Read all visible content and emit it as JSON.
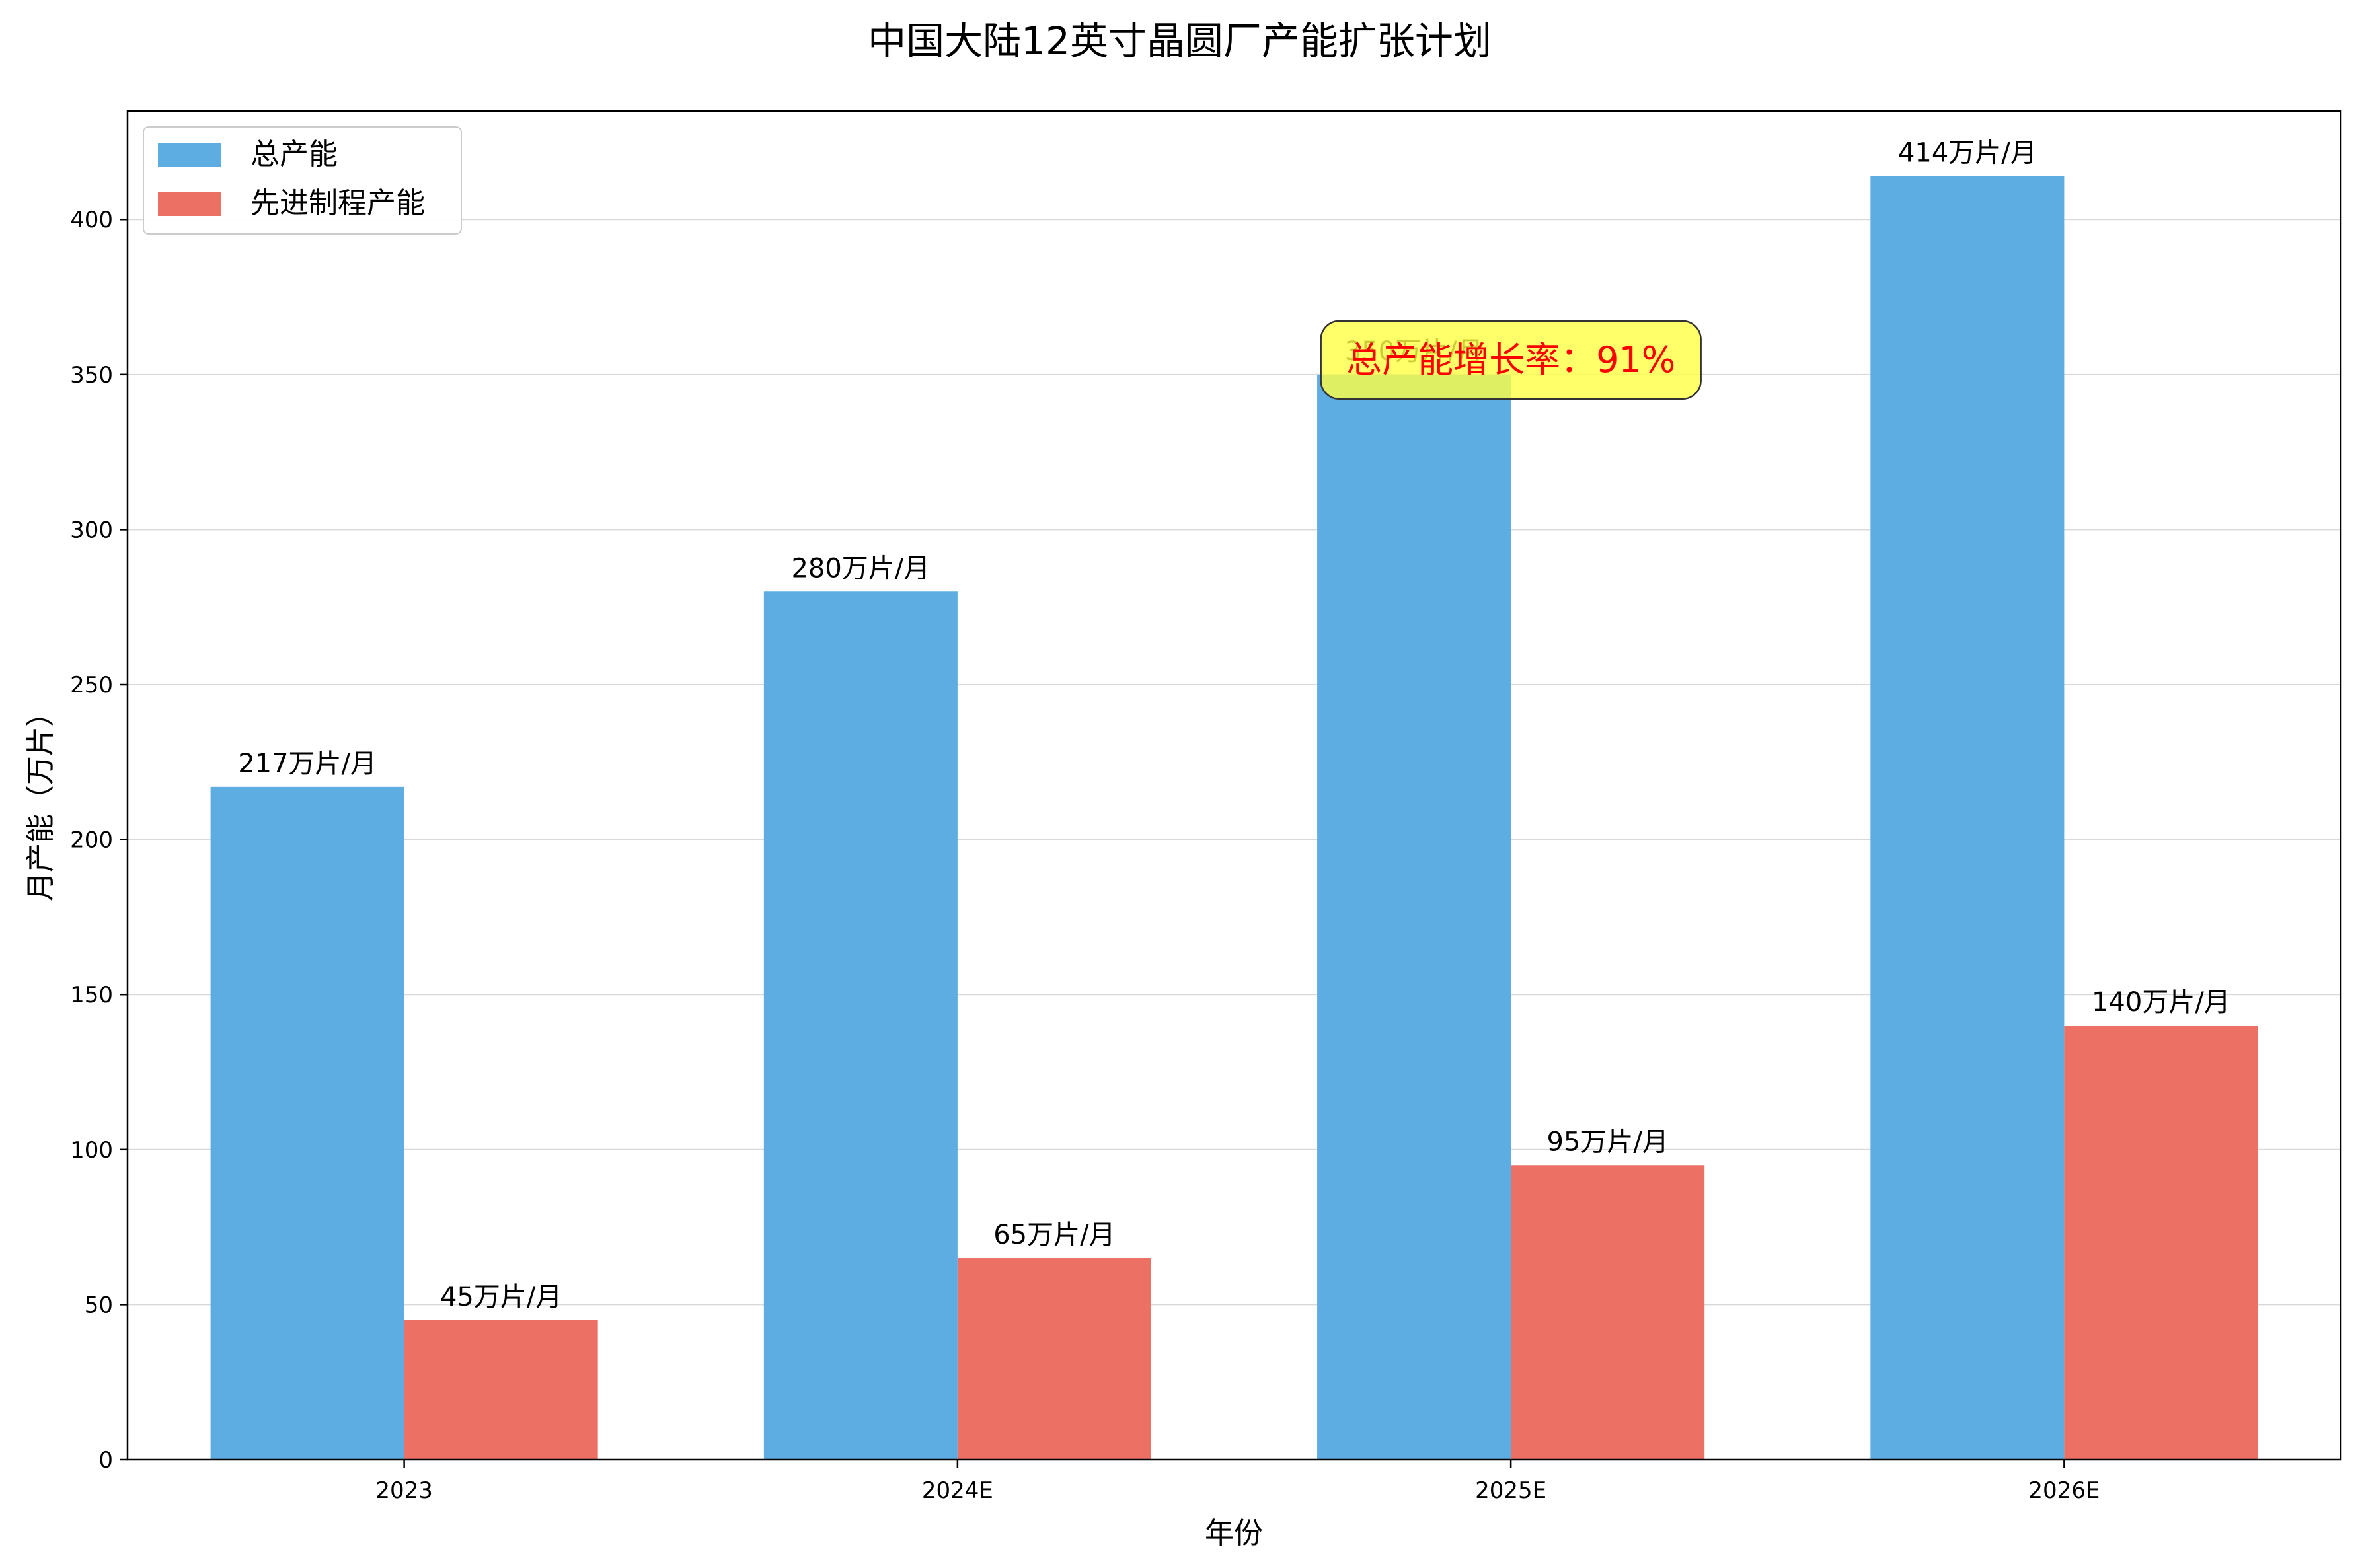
{
  "chart_data": {
    "type": "bar",
    "title": "中国大陆12英寸晶圆厂产能扩张计划",
    "xlabel": "年份",
    "ylabel": "月产能（万片）",
    "categories": [
      "2023",
      "2024E",
      "2025E",
      "2026E"
    ],
    "series": [
      {
        "name": "总产能",
        "color": "#5dade2",
        "values": [
          217,
          280,
          350,
          414
        ],
        "labels": [
          "217万片/月",
          "280万片/月",
          "350万片/月",
          "414万片/月"
        ]
      },
      {
        "name": "先进制程产能",
        "color": "#ec7063",
        "values": [
          45,
          65,
          95,
          140
        ],
        "labels": [
          "45万片/月",
          "65万片/月",
          "95万片/月",
          "140万片/月"
        ]
      }
    ],
    "ylim": [
      0,
      435
    ],
    "yticks": [
      0,
      50,
      100,
      150,
      200,
      250,
      300,
      350,
      400
    ],
    "grid": "horizontal",
    "legend_position": "top-left",
    "annotation": {
      "text": "总产能增长率：91%",
      "text_color": "#ff0000",
      "box_color": "#ffff44",
      "anchor_category": "2025E",
      "anchor_value": 350
    }
  }
}
